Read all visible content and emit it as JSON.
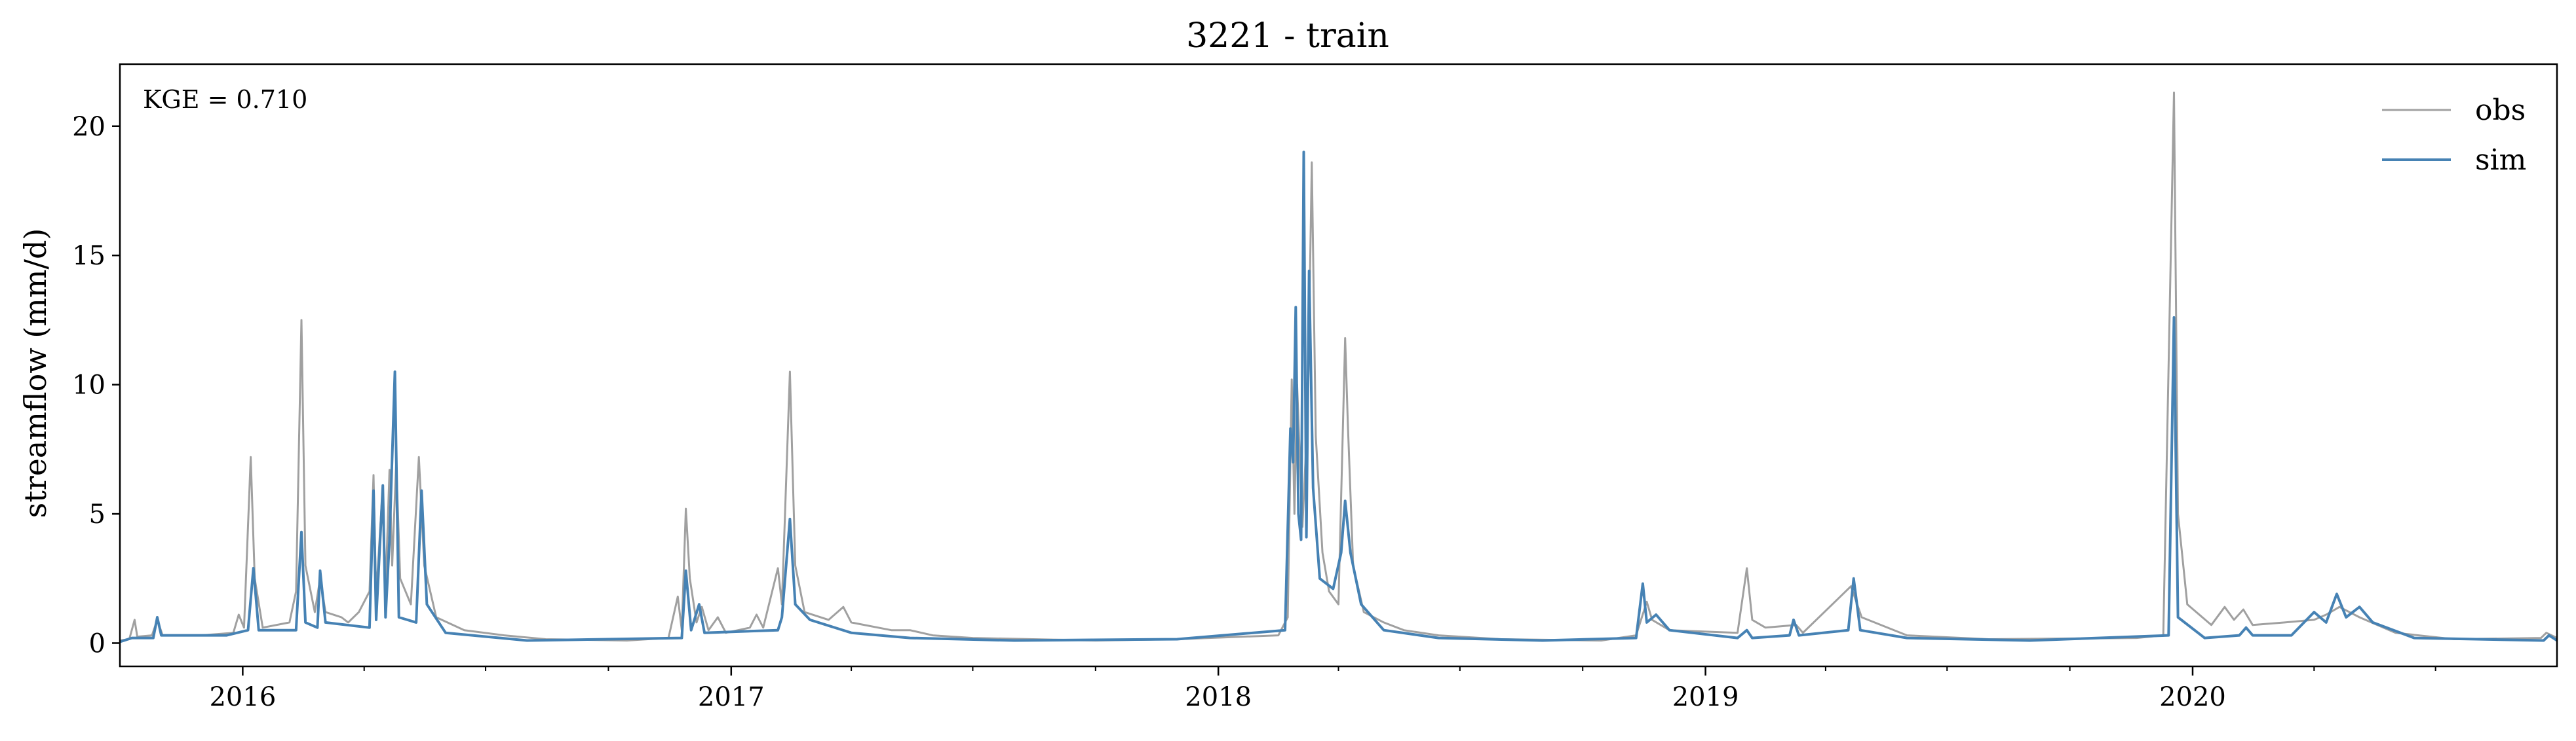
{
  "chart_data": {
    "type": "line",
    "title": "3221 - train",
    "ylabel": "streamflow (mm/d)",
    "xlabel": "",
    "annotation": "KGE = 0.710",
    "xlim": [
      "2015-10-01",
      "2020-09-30"
    ],
    "ylim": [
      -0.9,
      22.4
    ],
    "yticks": [
      0,
      5,
      10,
      15,
      20
    ],
    "xticks": [
      "2016-01-01",
      "2017-01-01",
      "2018-01-01",
      "2019-01-01",
      "2020-01-01"
    ],
    "xtick_labels": [
      "2016",
      "2017",
      "2018",
      "2019",
      "2020"
    ],
    "legend_position": "upper right",
    "grid": false,
    "series": [
      {
        "name": "obs",
        "color": "#a0a0a0",
        "points": [
          [
            "2015-10-01",
            0.1
          ],
          [
            "2015-10-08",
            0.15
          ],
          [
            "2015-10-12",
            0.9
          ],
          [
            "2015-10-14",
            0.25
          ],
          [
            "2015-10-25",
            0.3
          ],
          [
            "2015-10-29",
            0.9
          ],
          [
            "2015-11-02",
            0.3
          ],
          [
            "2015-12-01",
            0.3
          ],
          [
            "2015-12-25",
            0.4
          ],
          [
            "2015-12-29",
            1.1
          ],
          [
            "2016-01-02",
            0.6
          ],
          [
            "2016-01-07",
            7.2
          ],
          [
            "2016-01-10",
            2.5
          ],
          [
            "2016-01-16",
            0.6
          ],
          [
            "2016-02-05",
            0.8
          ],
          [
            "2016-02-10",
            2.0
          ],
          [
            "2016-02-14",
            12.5
          ],
          [
            "2016-02-17",
            3.0
          ],
          [
            "2016-02-24",
            1.2
          ],
          [
            "2016-02-28",
            2.5
          ],
          [
            "2016-03-03",
            1.2
          ],
          [
            "2016-03-15",
            1.0
          ],
          [
            "2016-03-20",
            0.8
          ],
          [
            "2016-03-28",
            1.2
          ],
          [
            "2016-04-05",
            2.0
          ],
          [
            "2016-04-08",
            6.5
          ],
          [
            "2016-04-10",
            1.8
          ],
          [
            "2016-04-15",
            6.1
          ],
          [
            "2016-04-17",
            2.0
          ],
          [
            "2016-04-20",
            6.7
          ],
          [
            "2016-04-22",
            3.0
          ],
          [
            "2016-04-25",
            7.0
          ],
          [
            "2016-04-28",
            2.5
          ],
          [
            "2016-05-06",
            1.5
          ],
          [
            "2016-05-12",
            7.2
          ],
          [
            "2016-05-16",
            3.0
          ],
          [
            "2016-05-25",
            1.0
          ],
          [
            "2016-06-15",
            0.5
          ],
          [
            "2016-07-15",
            0.3
          ],
          [
            "2016-08-15",
            0.15
          ],
          [
            "2016-10-15",
            0.1
          ],
          [
            "2016-11-15",
            0.2
          ],
          [
            "2016-11-22",
            1.8
          ],
          [
            "2016-11-25",
            0.5
          ],
          [
            "2016-11-28",
            5.2
          ],
          [
            "2016-12-01",
            2.5
          ],
          [
            "2016-12-06",
            0.8
          ],
          [
            "2016-12-10",
            1.4
          ],
          [
            "2016-12-15",
            0.5
          ],
          [
            "2016-12-22",
            1.0
          ],
          [
            "2016-12-28",
            0.4
          ],
          [
            "2017-01-15",
            0.6
          ],
          [
            "2017-01-20",
            1.1
          ],
          [
            "2017-01-25",
            0.6
          ],
          [
            "2017-02-05",
            2.9
          ],
          [
            "2017-02-08",
            1.5
          ],
          [
            "2017-02-14",
            10.5
          ],
          [
            "2017-02-18",
            3.0
          ],
          [
            "2017-02-25",
            1.2
          ],
          [
            "2017-03-15",
            0.9
          ],
          [
            "2017-03-26",
            1.4
          ],
          [
            "2017-04-01",
            0.8
          ],
          [
            "2017-05-01",
            0.5
          ],
          [
            "2017-05-15",
            0.5
          ],
          [
            "2017-06-01",
            0.3
          ],
          [
            "2017-07-01",
            0.2
          ],
          [
            "2017-10-01",
            0.1
          ],
          [
            "2017-12-01",
            0.15
          ],
          [
            "2018-02-15",
            0.3
          ],
          [
            "2018-02-22",
            1.0
          ],
          [
            "2018-02-25",
            10.2
          ],
          [
            "2018-02-27",
            5.0
          ],
          [
            "2018-03-01",
            10.0
          ],
          [
            "2018-03-05",
            4.5
          ],
          [
            "2018-03-09",
            9.0
          ],
          [
            "2018-03-12",
            18.6
          ],
          [
            "2018-03-15",
            8.0
          ],
          [
            "2018-03-20",
            3.5
          ],
          [
            "2018-03-25",
            2.0
          ],
          [
            "2018-04-01",
            1.5
          ],
          [
            "2018-04-06",
            11.8
          ],
          [
            "2018-04-08",
            8.5
          ],
          [
            "2018-04-12",
            3.0
          ],
          [
            "2018-04-20",
            1.2
          ],
          [
            "2018-05-05",
            0.8
          ],
          [
            "2018-05-20",
            0.5
          ],
          [
            "2018-06-15",
            0.3
          ],
          [
            "2018-08-01",
            0.15
          ],
          [
            "2018-10-15",
            0.1
          ],
          [
            "2018-11-10",
            0.3
          ],
          [
            "2018-11-18",
            1.6
          ],
          [
            "2018-11-22",
            0.9
          ],
          [
            "2018-12-05",
            0.5
          ],
          [
            "2019-01-25",
            0.4
          ],
          [
            "2019-02-01",
            2.9
          ],
          [
            "2019-02-05",
            0.9
          ],
          [
            "2019-02-15",
            0.6
          ],
          [
            "2019-03-10",
            0.7
          ],
          [
            "2019-03-15",
            0.4
          ],
          [
            "2019-04-20",
            2.2
          ],
          [
            "2019-04-28",
            1.0
          ],
          [
            "2019-06-01",
            0.3
          ],
          [
            "2019-08-01",
            0.15
          ],
          [
            "2019-11-20",
            0.2
          ],
          [
            "2019-12-10",
            0.3
          ],
          [
            "2019-12-18",
            21.3
          ],
          [
            "2019-12-21",
            5.0
          ],
          [
            "2019-12-28",
            1.5
          ],
          [
            "2020-01-15",
            0.7
          ],
          [
            "2020-01-25",
            1.4
          ],
          [
            "2020-02-01",
            0.9
          ],
          [
            "2020-02-08",
            1.3
          ],
          [
            "2020-02-15",
            0.7
          ],
          [
            "2020-03-10",
            0.8
          ],
          [
            "2020-04-01",
            0.9
          ],
          [
            "2020-04-10",
            1.1
          ],
          [
            "2020-04-20",
            1.4
          ],
          [
            "2020-05-05",
            1.0
          ],
          [
            "2020-06-01",
            0.4
          ],
          [
            "2020-07-15",
            0.15
          ],
          [
            "2020-09-18",
            0.2
          ],
          [
            "2020-09-22",
            0.4
          ],
          [
            "2020-09-30",
            0.2
          ]
        ]
      },
      {
        "name": "sim",
        "color": "#4682b4",
        "points": [
          [
            "2015-10-01",
            0.05
          ],
          [
            "2015-10-10",
            0.2
          ],
          [
            "2015-10-26",
            0.2
          ],
          [
            "2015-10-29",
            1.0
          ],
          [
            "2015-11-01",
            0.3
          ],
          [
            "2015-12-20",
            0.3
          ],
          [
            "2016-01-05",
            0.5
          ],
          [
            "2016-01-09",
            2.9
          ],
          [
            "2016-01-13",
            0.5
          ],
          [
            "2016-02-10",
            0.5
          ],
          [
            "2016-02-14",
            4.3
          ],
          [
            "2016-02-17",
            0.8
          ],
          [
            "2016-02-26",
            0.6
          ],
          [
            "2016-02-28",
            2.8
          ],
          [
            "2016-03-03",
            0.8
          ],
          [
            "2016-04-05",
            0.6
          ],
          [
            "2016-04-08",
            5.9
          ],
          [
            "2016-04-10",
            0.9
          ],
          [
            "2016-04-15",
            6.1
          ],
          [
            "2016-04-17",
            1.0
          ],
          [
            "2016-04-20",
            4.0
          ],
          [
            "2016-04-24",
            10.5
          ],
          [
            "2016-04-27",
            1.0
          ],
          [
            "2016-05-10",
            0.8
          ],
          [
            "2016-05-14",
            5.9
          ],
          [
            "2016-05-18",
            1.5
          ],
          [
            "2016-06-01",
            0.4
          ],
          [
            "2016-08-01",
            0.1
          ],
          [
            "2016-11-25",
            0.2
          ],
          [
            "2016-11-28",
            2.8
          ],
          [
            "2016-12-02",
            0.5
          ],
          [
            "2016-12-08",
            1.5
          ],
          [
            "2016-12-12",
            0.4
          ],
          [
            "2017-02-05",
            0.5
          ],
          [
            "2017-02-08",
            1.0
          ],
          [
            "2017-02-14",
            4.8
          ],
          [
            "2017-02-18",
            1.5
          ],
          [
            "2017-03-01",
            0.9
          ],
          [
            "2017-04-01",
            0.4
          ],
          [
            "2017-05-15",
            0.2
          ],
          [
            "2017-08-01",
            0.1
          ],
          [
            "2017-12-01",
            0.15
          ],
          [
            "2018-02-20",
            0.5
          ],
          [
            "2018-02-24",
            8.3
          ],
          [
            "2018-02-26",
            7.0
          ],
          [
            "2018-02-28",
            13.0
          ],
          [
            "2018-03-02",
            5.0
          ],
          [
            "2018-03-04",
            4.0
          ],
          [
            "2018-03-06",
            19.0
          ],
          [
            "2018-03-08",
            4.1
          ],
          [
            "2018-03-10",
            14.4
          ],
          [
            "2018-03-13",
            6.0
          ],
          [
            "2018-03-18",
            2.5
          ],
          [
            "2018-03-28",
            2.1
          ],
          [
            "2018-04-03",
            3.5
          ],
          [
            "2018-04-06",
            5.5
          ],
          [
            "2018-04-10",
            3.5
          ],
          [
            "2018-04-18",
            1.5
          ],
          [
            "2018-05-05",
            0.5
          ],
          [
            "2018-06-15",
            0.2
          ],
          [
            "2018-09-01",
            0.1
          ],
          [
            "2018-11-10",
            0.2
          ],
          [
            "2018-11-15",
            2.3
          ],
          [
            "2018-11-18",
            0.8
          ],
          [
            "2018-11-25",
            1.1
          ],
          [
            "2018-12-05",
            0.5
          ],
          [
            "2019-01-25",
            0.2
          ],
          [
            "2019-02-01",
            0.5
          ],
          [
            "2019-02-05",
            0.2
          ],
          [
            "2019-03-05",
            0.3
          ],
          [
            "2019-03-08",
            0.9
          ],
          [
            "2019-03-12",
            0.3
          ],
          [
            "2019-04-18",
            0.5
          ],
          [
            "2019-04-22",
            2.5
          ],
          [
            "2019-04-27",
            0.5
          ],
          [
            "2019-06-01",
            0.2
          ],
          [
            "2019-09-01",
            0.1
          ],
          [
            "2019-12-14",
            0.3
          ],
          [
            "2019-12-18",
            12.6
          ],
          [
            "2019-12-21",
            1.0
          ],
          [
            "2020-01-10",
            0.2
          ],
          [
            "2020-02-05",
            0.3
          ],
          [
            "2020-02-10",
            0.6
          ],
          [
            "2020-02-15",
            0.3
          ],
          [
            "2020-03-15",
            0.3
          ],
          [
            "2020-04-01",
            1.2
          ],
          [
            "2020-04-10",
            0.8
          ],
          [
            "2020-04-18",
            1.9
          ],
          [
            "2020-04-25",
            1.0
          ],
          [
            "2020-05-05",
            1.4
          ],
          [
            "2020-05-15",
            0.8
          ],
          [
            "2020-06-15",
            0.2
          ],
          [
            "2020-09-20",
            0.1
          ],
          [
            "2020-09-24",
            0.3
          ],
          [
            "2020-09-30",
            0.1
          ]
        ]
      }
    ]
  }
}
